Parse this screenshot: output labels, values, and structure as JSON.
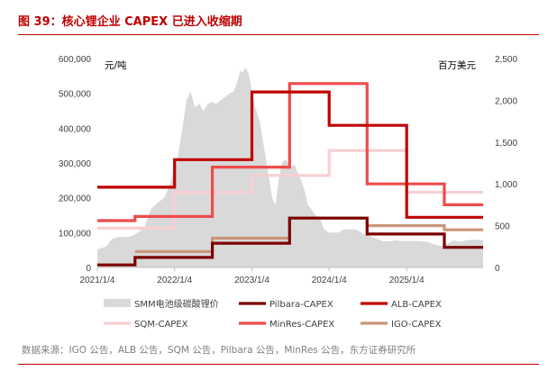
{
  "title": "图 39：核心锂企业 CAPEX 已进入收缩期",
  "source": "数据来源：IGO 公告，ALB 公告，SQM 公告，Pilbara 公告，MinRes 公告，东方证券研究所",
  "colors": {
    "title": "#c00000",
    "smm_area": "#d9d9d9",
    "pilbara": "#7b0000",
    "alb": "#c00000",
    "sqm": "#f8cfd3",
    "minres": "#ef4b4b",
    "igo": "#c9957b"
  },
  "chart_data": {
    "type": "line",
    "title": "",
    "y_left_unit": "元/吨",
    "y_right_unit": "百万美元",
    "y_left_range": [
      0,
      600000
    ],
    "y_right_range": [
      0,
      2500
    ],
    "x_range": [
      "2021/1/4",
      "2025/12/31"
    ],
    "x_ticks": [
      "2021/1/4",
      "2022/1/4",
      "2023/1/4",
      "2024/1/4",
      "2025/1/4"
    ],
    "y_left_ticks": [
      "0",
      "100,000",
      "200,000",
      "300,000",
      "400,000",
      "500,000",
      "600,000"
    ],
    "y_right_ticks": [
      "0",
      "500",
      "1,000",
      "1,500",
      "2,000",
      "2,500"
    ],
    "legend": [
      {
        "key": "smm",
        "label": "SMM电池级碳酸锂价",
        "kind": "area"
      },
      {
        "key": "pilbara",
        "label": "Pilbara-CAPEX",
        "kind": "line"
      },
      {
        "key": "alb",
        "label": "ALB-CAPEX",
        "kind": "line"
      },
      {
        "key": "sqm",
        "label": "SQM-CAPEX",
        "kind": "line"
      },
      {
        "key": "minres",
        "label": "MinRes-CAPEX",
        "kind": "line"
      },
      {
        "key": "igo",
        "label": "IGO-CAPEX",
        "kind": "line"
      }
    ],
    "smm_price_series": {
      "name": "SMM电池级碳酸锂价",
      "axis": "left",
      "dates": [
        "2021/1/4",
        "2021/2/15",
        "2021/3/15",
        "2021/4/15",
        "2021/5/15",
        "2021/6/15",
        "2021/7/15",
        "2021/8/15",
        "2021/9/1",
        "2021/9/20",
        "2021/10/15",
        "2021/11/15",
        "2021/12/15",
        "2022/1/4",
        "2022/1/20",
        "2022/2/10",
        "2022/3/1",
        "2022/3/20",
        "2022/4/10",
        "2022/5/1",
        "2022/5/20",
        "2022/6/10",
        "2022/7/1",
        "2022/7/20",
        "2022/8/10",
        "2022/9/1",
        "2022/9/20",
        "2022/10/10",
        "2022/10/25",
        "2022/11/10",
        "2022/11/20",
        "2022/12/5",
        "2022/12/20",
        "2023/1/4",
        "2023/1/20",
        "2023/2/10",
        "2023/3/1",
        "2023/3/20",
        "2023/4/10",
        "2023/4/25",
        "2023/5/10",
        "2023/5/25",
        "2023/6/10",
        "2023/6/25",
        "2023/7/10",
        "2023/7/25",
        "2023/8/10",
        "2023/8/25",
        "2023/9/10",
        "2023/9/25",
        "2023/10/15",
        "2023/11/1",
        "2023/11/20",
        "2023/12/10",
        "2024/1/4",
        "2024/2/15",
        "2024/3/15",
        "2024/4/15",
        "2024/5/15",
        "2024/6/15",
        "2024/7/15",
        "2024/8/15",
        "2024/9/15",
        "2024/10/15",
        "2024/11/15",
        "2024/12/15",
        "2025/1/15",
        "2025/2/15",
        "2025/3/15",
        "2025/4/15",
        "2025/5/15",
        "2025/6/15",
        "2025/7/15",
        "2025/8/15",
        "2025/9/15",
        "2025/10/15",
        "2025/11/15",
        "2025/12/31"
      ],
      "values": [
        52000,
        60000,
        82000,
        88000,
        87000,
        90000,
        100000,
        115000,
        150000,
        172000,
        185000,
        200000,
        240000,
        290000,
        320000,
        400000,
        480000,
        505000,
        460000,
        470000,
        450000,
        470000,
        475000,
        470000,
        480000,
        490000,
        500000,
        505000,
        530000,
        565000,
        560000,
        575000,
        555000,
        505000,
        460000,
        420000,
        350000,
        280000,
        200000,
        180000,
        250000,
        300000,
        310000,
        300000,
        290000,
        295000,
        270000,
        250000,
        220000,
        180000,
        165000,
        150000,
        145000,
        110000,
        100000,
        100000,
        110000,
        110000,
        108000,
        95000,
        90000,
        82000,
        75000,
        75000,
        78000,
        76000,
        76000,
        76000,
        75000,
        73000,
        66000,
        62000,
        68000,
        78000,
        73000,
        78000,
        80000,
        78000
      ]
    },
    "series": [
      {
        "name": "Pilbara-CAPEX",
        "key": "pilbara",
        "axis": "right",
        "steps": [
          [
            "2021/1/4",
            30
          ],
          [
            "2021/7/1",
            120
          ],
          [
            "2022/7/1",
            290
          ],
          [
            "2023/7/1",
            590
          ],
          [
            "2024/7/1",
            400
          ],
          [
            "2025/7/1",
            240
          ]
        ],
        "end": "2025/12/31"
      },
      {
        "name": "ALB-CAPEX",
        "key": "alb",
        "axis": "right",
        "steps": [
          [
            "2021/1/4",
            960
          ],
          [
            "2022/1/4",
            1290
          ],
          [
            "2023/1/4",
            2100
          ],
          [
            "2024/1/4",
            1700
          ],
          [
            "2025/1/4",
            600
          ]
        ],
        "end": "2025/12/31"
      },
      {
        "name": "SQM-CAPEX",
        "key": "sqm",
        "axis": "right",
        "steps": [
          [
            "2021/1/4",
            470
          ],
          [
            "2022/1/4",
            900
          ],
          [
            "2023/1/4",
            1100
          ],
          [
            "2024/1/4",
            1400
          ],
          [
            "2025/1/4",
            900
          ]
        ],
        "end": "2025/12/31"
      },
      {
        "name": "MinRes-CAPEX",
        "key": "minres",
        "axis": "right",
        "steps": [
          [
            "2021/1/4",
            560
          ],
          [
            "2021/7/1",
            610
          ],
          [
            "2022/7/1",
            1200
          ],
          [
            "2023/7/1",
            2200
          ],
          [
            "2024/7/1",
            1000
          ],
          [
            "2025/7/1",
            750
          ]
        ],
        "end": "2025/12/31"
      },
      {
        "name": "IGO-CAPEX",
        "key": "igo",
        "axis": "right",
        "steps": [
          [
            "2021/7/1",
            190
          ],
          [
            "2022/7/1",
            350
          ],
          [
            "2023/7/1",
            590
          ],
          [
            "2024/7/1",
            500
          ],
          [
            "2025/7/1",
            450
          ]
        ],
        "end": "2025/12/31"
      }
    ]
  }
}
